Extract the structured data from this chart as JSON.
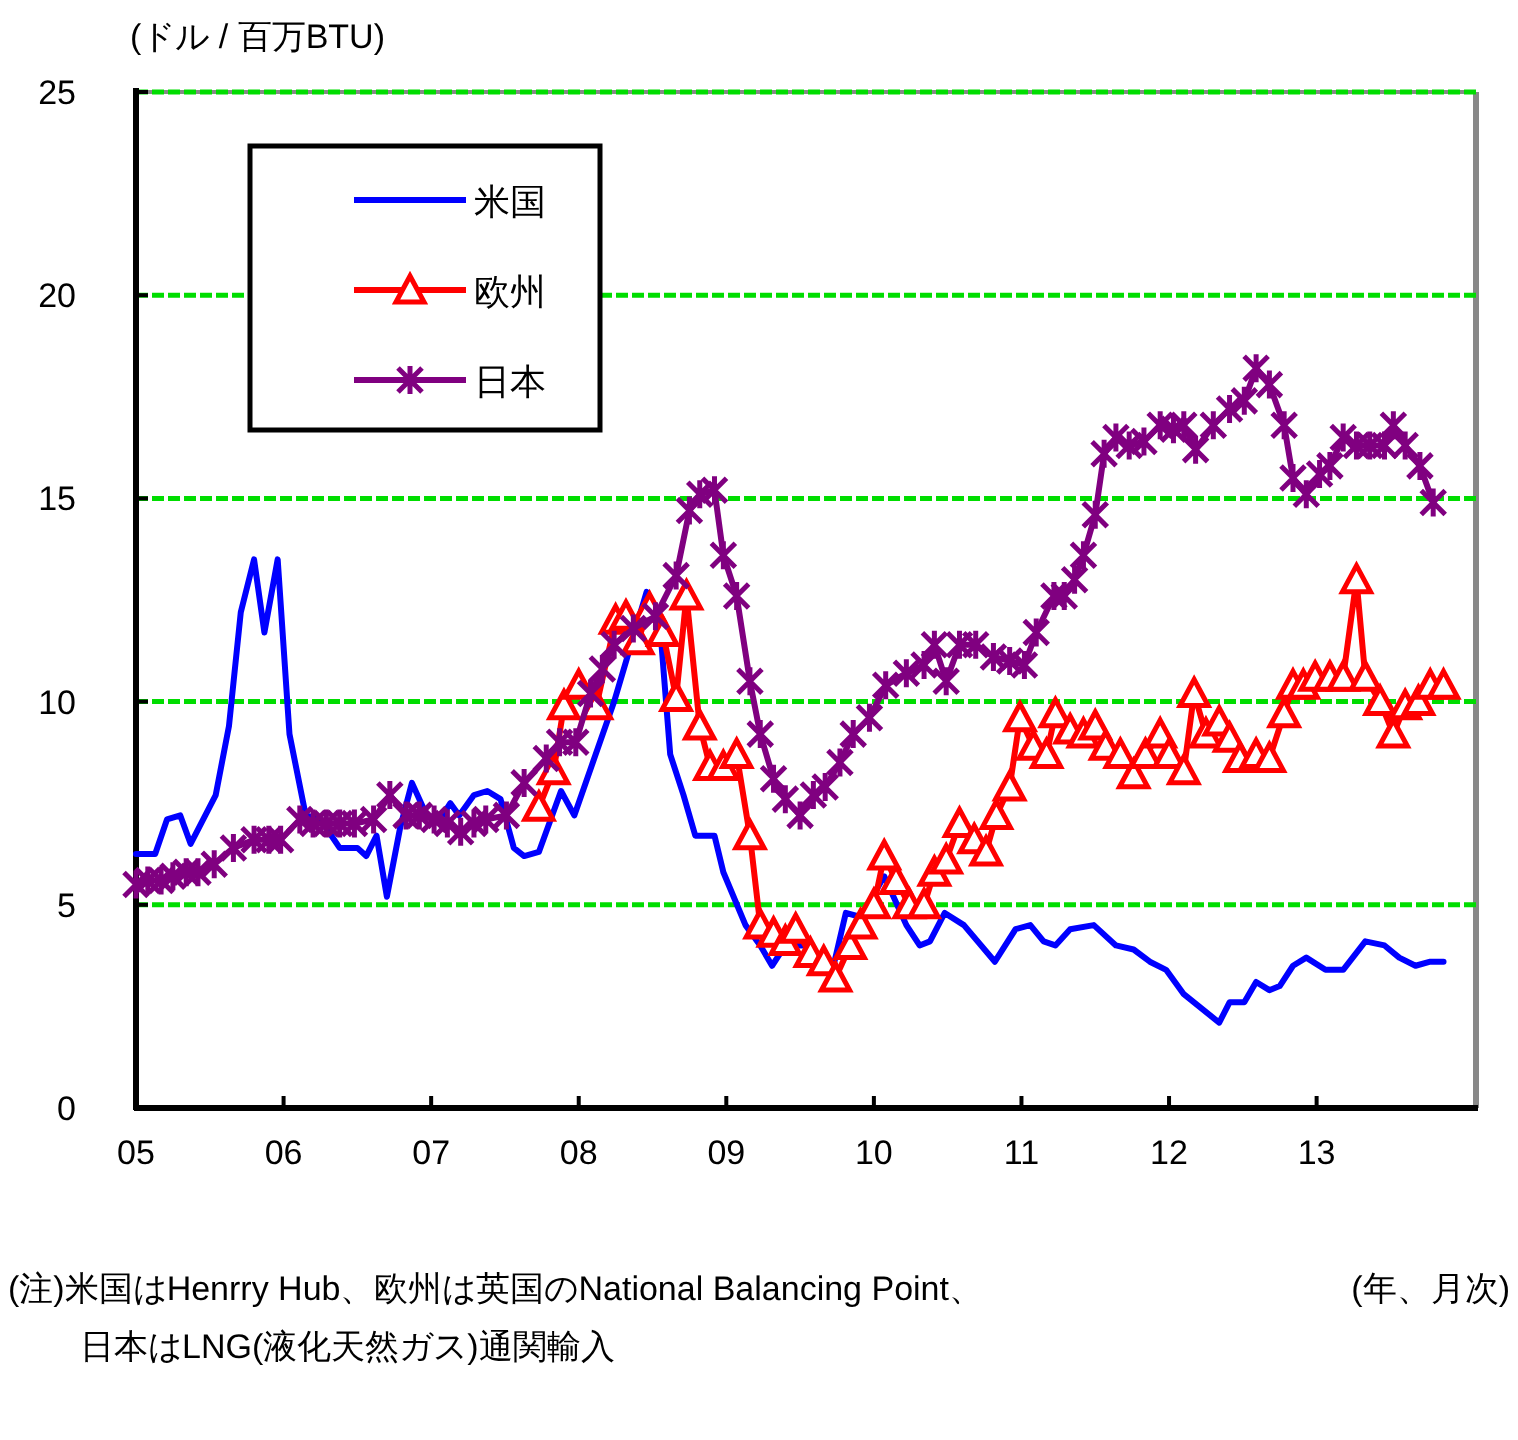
{
  "chart_data": {
    "type": "line",
    "ylabel": "(ドル / 百万BTU)",
    "xlabel": "(年、月次)",
    "annotations": [
      "(注)米国はHenrry Hub、欧州は英国のNational Balancing Point、",
      "日本はLNG(液化天然ガス)通関輸入"
    ],
    "xlim": [
      2005,
      2014.08
    ],
    "xticks": [
      {
        "value": 2005,
        "label": "05"
      },
      {
        "value": 2006,
        "label": "06"
      },
      {
        "value": 2007,
        "label": "07"
      },
      {
        "value": 2008,
        "label": "08"
      },
      {
        "value": 2009,
        "label": "09"
      },
      {
        "value": 2010,
        "label": "10"
      },
      {
        "value": 2011,
        "label": "11"
      },
      {
        "value": 2012,
        "label": "12"
      },
      {
        "value": 2013,
        "label": "13"
      }
    ],
    "ylim": [
      0,
      25
    ],
    "yticks": [
      0,
      5,
      10,
      15,
      20,
      25
    ],
    "grid": "y",
    "legend": "top left",
    "line_style": "solid",
    "series": [
      {
        "name": "米国",
        "color": "#0000ff",
        "marker": "none",
        "x": [
          2005.0,
          2005.13,
          2005.21,
          2005.3,
          2005.37,
          2005.54,
          2005.63,
          2005.71,
          2005.8,
          2005.87,
          2005.96,
          2006.04,
          2006.15,
          2006.25,
          2006.38,
          2006.5,
          2006.56,
          2006.63,
          2006.7,
          2006.79,
          2006.87,
          2006.97,
          2007.06,
          2007.13,
          2007.19,
          2007.29,
          2007.38,
          2007.47,
          2007.56,
          2007.63,
          2007.73,
          2007.88,
          2007.97,
          2008.24,
          2008.46,
          2008.55,
          2008.62,
          2008.71,
          2008.79,
          2008.92,
          2008.98,
          2009.13,
          2009.23,
          2009.31,
          2009.4,
          2009.54,
          2009.67,
          2009.72,
          2009.81,
          2009.91,
          2010.07,
          2010.22,
          2010.31,
          2010.38,
          2010.48,
          2010.61,
          2010.82,
          2010.96,
          2011.06,
          2011.15,
          2011.23,
          2011.33,
          2011.49,
          2011.64,
          2011.76,
          2011.87,
          2011.98,
          2012.1,
          2012.34,
          2012.41,
          2012.51,
          2012.59,
          2012.68,
          2012.75,
          2012.84,
          2012.93,
          2013.06,
          2013.18,
          2013.33,
          2013.46,
          2013.56,
          2013.67,
          2013.77,
          2013.86
        ],
        "values": [
          6.25,
          6.25,
          7.1,
          7.2,
          6.5,
          7.7,
          9.4,
          12.2,
          13.5,
          11.7,
          13.5,
          9.2,
          7.2,
          7.1,
          6.4,
          6.4,
          6.2,
          6.7,
          5.2,
          6.9,
          8.0,
          7.2,
          7.1,
          7.5,
          7.2,
          7.7,
          7.8,
          7.6,
          6.4,
          6.2,
          6.3,
          7.8,
          7.2,
          10.0,
          12.7,
          11.9,
          8.7,
          7.7,
          6.7,
          6.7,
          5.8,
          4.5,
          4.0,
          3.5,
          4.0,
          4.0,
          3.5,
          3.4,
          4.8,
          4.7,
          5.7,
          4.5,
          4.0,
          4.1,
          4.8,
          4.5,
          3.6,
          4.4,
          4.5,
          4.1,
          4.0,
          4.4,
          4.5,
          4.0,
          3.9,
          3.6,
          3.4,
          2.8,
          2.1,
          2.6,
          2.6,
          3.1,
          2.9,
          3.0,
          3.5,
          3.7,
          3.4,
          3.4,
          4.1,
          4.0,
          3.7,
          3.5,
          3.6,
          3.6
        ]
      },
      {
        "name": "欧州",
        "color": "#ff0000",
        "marker": "triangle",
        "x": [
          2007.73,
          2007.83,
          2007.9,
          2008.0,
          2008.12,
          2008.25,
          2008.32,
          2008.4,
          2008.48,
          2008.57,
          2008.66,
          2008.73,
          2008.82,
          2008.89,
          2008.98,
          2009.07,
          2009.16,
          2009.23,
          2009.32,
          2009.4,
          2009.47,
          2009.57,
          2009.66,
          2009.74,
          2009.84,
          2009.91,
          2010.0,
          2010.07,
          2010.15,
          2010.24,
          2010.34,
          2010.41,
          2010.49,
          2010.58,
          2010.68,
          2010.76,
          2010.83,
          2010.92,
          2010.99,
          2011.08,
          2011.17,
          2011.23,
          2011.33,
          2011.42,
          2011.5,
          2011.57,
          2011.67,
          2011.76,
          2011.84,
          2011.94,
          2012.0,
          2012.1,
          2012.17,
          2012.25,
          2012.34,
          2012.41,
          2012.48,
          2012.59,
          2012.68,
          2012.78,
          2012.84,
          2012.91,
          2012.99,
          2013.09,
          2013.18,
          2013.27,
          2013.33,
          2013.43,
          2013.52,
          2013.6,
          2013.69,
          2013.77,
          2013.86
        ],
        "values": [
          7.4,
          8.3,
          9.9,
          10.4,
          9.9,
          12.0,
          12.1,
          11.5,
          12.3,
          11.7,
          10.1,
          12.6,
          9.4,
          8.4,
          8.4,
          8.7,
          6.7,
          4.5,
          4.3,
          4.1,
          4.4,
          3.8,
          3.6,
          3.2,
          4.0,
          4.5,
          5.0,
          6.2,
          5.6,
          5.0,
          5.0,
          5.8,
          6.1,
          7.0,
          6.6,
          6.3,
          7.2,
          7.9,
          9.6,
          8.9,
          8.7,
          9.7,
          9.3,
          9.2,
          9.4,
          8.9,
          8.7,
          8.2,
          8.7,
          9.2,
          8.7,
          8.3,
          10.2,
          9.2,
          9.5,
          9.1,
          8.6,
          8.7,
          8.6,
          9.7,
          10.4,
          10.4,
          10.6,
          10.6,
          10.6,
          13.0,
          10.6,
          10.0,
          9.2,
          9.9,
          10.0,
          10.4,
          10.4
        ]
      },
      {
        "name": "日本",
        "color": "#800080",
        "marker": "cross",
        "x": [
          2005.0,
          2005.08,
          2005.17,
          2005.25,
          2005.34,
          2005.42,
          2005.53,
          2005.66,
          2005.8,
          2005.9,
          2005.98,
          2006.11,
          2006.2,
          2006.29,
          2006.38,
          2006.48,
          2006.61,
          2006.72,
          2006.83,
          2006.92,
          2007.02,
          2007.11,
          2007.2,
          2007.29,
          2007.37,
          2007.51,
          2007.63,
          2007.78,
          2007.87,
          2007.98,
          2008.08,
          2008.16,
          2008.24,
          2008.37,
          2008.52,
          2008.66,
          2008.75,
          2008.82,
          2008.92,
          2008.98,
          2009.07,
          2009.16,
          2009.23,
          2009.32,
          2009.4,
          2009.5,
          2009.59,
          2009.67,
          2009.77,
          2009.86,
          2009.97,
          2010.08,
          2010.22,
          2010.34,
          2010.41,
          2010.49,
          2010.58,
          2010.69,
          2010.81,
          2010.92,
          2011.02,
          2011.1,
          2011.22,
          2011.29,
          2011.36,
          2011.42,
          2011.5,
          2011.56,
          2011.64,
          2011.73,
          2011.83,
          2011.94,
          2012.03,
          2012.1,
          2012.18,
          2012.3,
          2012.41,
          2012.51,
          2012.59,
          2012.68,
          2012.78,
          2012.84,
          2012.93,
          2013.02,
          2013.09,
          2013.18,
          2013.27,
          2013.36,
          2013.46,
          2013.52,
          2013.6,
          2013.7,
          2013.79
        ],
        "values": [
          5.5,
          5.6,
          5.6,
          5.7,
          5.8,
          5.8,
          6.0,
          6.4,
          6.6,
          6.6,
          6.6,
          7.1,
          7.0,
          7.0,
          7.0,
          7.0,
          7.1,
          7.7,
          7.2,
          7.2,
          7.1,
          7.0,
          6.8,
          7.0,
          7.1,
          7.2,
          8.0,
          8.6,
          9.0,
          9.0,
          10.2,
          10.8,
          11.4,
          11.8,
          12.1,
          13.1,
          14.7,
          15.1,
          15.2,
          13.6,
          12.6,
          10.5,
          9.2,
          8.1,
          7.6,
          7.2,
          7.7,
          7.9,
          8.5,
          9.2,
          9.6,
          10.4,
          10.7,
          10.9,
          11.4,
          10.5,
          11.4,
          11.4,
          11.1,
          11.0,
          10.9,
          11.7,
          12.6,
          12.6,
          13.0,
          13.6,
          14.6,
          16.1,
          16.5,
          16.3,
          16.4,
          16.8,
          16.7,
          16.8,
          16.2,
          16.8,
          17.2,
          17.4,
          18.2,
          17.8,
          16.8,
          15.5,
          15.1,
          15.6,
          15.8,
          16.5,
          16.3,
          16.3,
          16.3,
          16.8,
          16.3,
          15.8,
          14.9
        ]
      }
    ]
  }
}
